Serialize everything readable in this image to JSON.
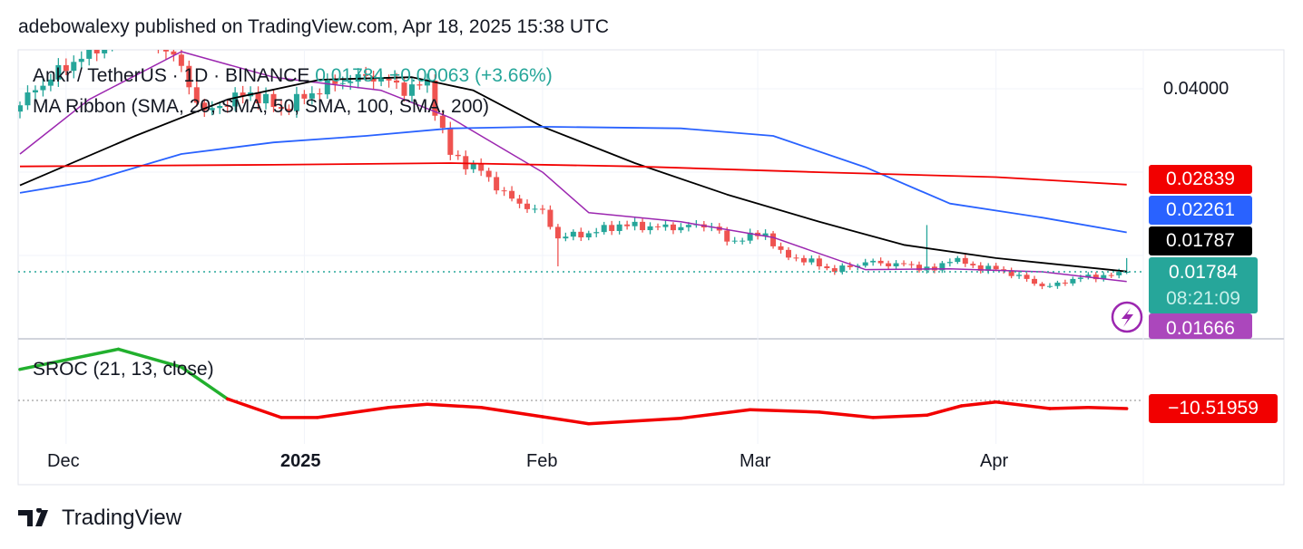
{
  "header": {
    "attribution": "adebowalexy published on TradingView.com, Apr 18, 2025 15:38 UTC"
  },
  "legend": {
    "symbol": "Ankr / TetherUS · 1D · BINANCE",
    "last": "0.01784",
    "change": "+0.00063 (+3.66%)",
    "indicator": "MA Ribbon (SMA, 20, SMA, 50, SMA, 100, SMA, 200)",
    "sroc": "SROC (21, 13, close)"
  },
  "price_scale": {
    "tick": "0.04000",
    "sma200": "0.02839",
    "sma100": "0.02261",
    "sma50": "0.01787",
    "last": "0.01784",
    "countdown": "08:21:09",
    "sma20": "0.01666",
    "sroc": "−10.51959"
  },
  "colors": {
    "up": "#26a69a",
    "down": "#ef5350",
    "sma20": "#9c27b0",
    "sma50": "#000000",
    "sma100": "#2962ff",
    "sma200": "#f20000",
    "sroc_pos": "#22b02e",
    "sroc_neg": "#f20000"
  },
  "time_axis": [
    "Dec",
    "2025",
    "Feb",
    "Mar",
    "Apr"
  ],
  "footer": {
    "brand": "TradingView"
  },
  "chart_data": {
    "type": "candlestick",
    "title": "Ankr / TetherUS · 1D · BINANCE",
    "start_date": "2024-11-25",
    "x_unit": "days since start",
    "close_keypoints": [
      [
        0,
        0.038
      ],
      [
        2,
        0.04
      ],
      [
        5,
        0.042
      ],
      [
        8,
        0.044
      ],
      [
        12,
        0.046
      ],
      [
        16,
        0.047
      ],
      [
        20,
        0.044
      ],
      [
        24,
        0.037
      ],
      [
        27,
        0.0385
      ],
      [
        30,
        0.0395
      ],
      [
        34,
        0.0375
      ],
      [
        38,
        0.0395
      ],
      [
        42,
        0.041
      ],
      [
        46,
        0.0415
      ],
      [
        50,
        0.04
      ],
      [
        53,
        0.0405
      ],
      [
        56,
        0.032
      ],
      [
        60,
        0.03
      ],
      [
        64,
        0.0265
      ],
      [
        68,
        0.025
      ],
      [
        70,
        0.022
      ],
      [
        74,
        0.0225
      ],
      [
        78,
        0.0235
      ],
      [
        84,
        0.0232
      ],
      [
        90,
        0.0235
      ],
      [
        92,
        0.0215
      ],
      [
        97,
        0.0225
      ],
      [
        99,
        0.02
      ],
      [
        103,
        0.019
      ],
      [
        106,
        0.018
      ],
      [
        110,
        0.019
      ],
      [
        116,
        0.0186
      ],
      [
        119,
        0.018
      ],
      [
        121,
        0.0195
      ],
      [
        124,
        0.0185
      ],
      [
        128,
        0.018
      ],
      [
        132,
        0.0165
      ],
      [
        134,
        0.016
      ],
      [
        137,
        0.017
      ],
      [
        140,
        0.0173
      ],
      [
        143,
        0.0175
      ],
      [
        144,
        0.01784
      ]
    ],
    "notable_wicks": [
      {
        "t": 70,
        "low": 0.0185
      },
      {
        "t": 118,
        "high": 0.0235
      },
      {
        "t": 144,
        "high": 0.0195
      }
    ],
    "series": [
      {
        "name": "SMA 20",
        "color": "#9c27b0",
        "points": [
          [
            0,
            0.0321
          ],
          [
            9,
            0.0387
          ],
          [
            21,
            0.0445
          ],
          [
            33,
            0.0414
          ],
          [
            47,
            0.0398
          ],
          [
            56,
            0.0365
          ],
          [
            68,
            0.0299
          ],
          [
            74,
            0.025
          ],
          [
            86,
            0.0239
          ],
          [
            98,
            0.022
          ],
          [
            110,
            0.0181
          ],
          [
            121,
            0.0182
          ],
          [
            133,
            0.01784
          ],
          [
            144,
            0.01666
          ]
        ]
      },
      {
        "name": "SMA 50",
        "color": "#000000",
        "points": [
          [
            0,
            0.0283
          ],
          [
            15,
            0.0343
          ],
          [
            27,
            0.0387
          ],
          [
            39,
            0.0411
          ],
          [
            51,
            0.0414
          ],
          [
            59,
            0.0398
          ],
          [
            68,
            0.0354
          ],
          [
            80,
            0.031
          ],
          [
            92,
            0.0272
          ],
          [
            104,
            0.0239
          ],
          [
            115,
            0.0211
          ],
          [
            127,
            0.0195
          ],
          [
            144,
            0.01787
          ]
        ]
      },
      {
        "name": "SMA 100",
        "color": "#2962ff",
        "points": [
          [
            0,
            0.0274
          ],
          [
            9,
            0.0288
          ],
          [
            21,
            0.0321
          ],
          [
            33,
            0.0335
          ],
          [
            45,
            0.0343
          ],
          [
            56,
            0.0352
          ],
          [
            68,
            0.0354
          ],
          [
            86,
            0.0352
          ],
          [
            98,
            0.0343
          ],
          [
            110,
            0.0305
          ],
          [
            121,
            0.0261
          ],
          [
            133,
            0.0244
          ],
          [
            144,
            0.02261
          ]
        ]
      },
      {
        "name": "SMA 200",
        "color": "#f20000",
        "points": [
          [
            0,
            0.0306
          ],
          [
            33,
            0.0308
          ],
          [
            56,
            0.031
          ],
          [
            80,
            0.0306
          ],
          [
            104,
            0.0299
          ],
          [
            127,
            0.0293
          ],
          [
            144,
            0.02839
          ]
        ]
      }
    ],
    "sroc": {
      "name": "SROC (21, 13, close)",
      "points": [
        [
          0,
          40
        ],
        [
          12.8,
          66
        ],
        [
          21,
          43
        ],
        [
          27,
          2
        ],
        [
          34,
          -22
        ],
        [
          38.7,
          -22
        ],
        [
          48,
          -9
        ],
        [
          53,
          -5
        ],
        [
          60,
          -9
        ],
        [
          68,
          -21
        ],
        [
          74,
          -30
        ],
        [
          86,
          -23
        ],
        [
          95,
          -12
        ],
        [
          104,
          -15
        ],
        [
          111,
          -22
        ],
        [
          118,
          -19
        ],
        [
          122.5,
          -7
        ],
        [
          127,
          -2
        ],
        [
          134,
          -10.5
        ],
        [
          139,
          -9
        ],
        [
          144,
          -10.52
        ]
      ]
    },
    "ylabel_ticks": [
      0.04
    ],
    "xticks": [
      {
        "label": "Dec",
        "t": 6
      },
      {
        "label": "2025",
        "t": 37
      },
      {
        "label": "Feb",
        "t": 68
      },
      {
        "label": "Mar",
        "t": 96
      },
      {
        "label": "Apr",
        "t": 127
      }
    ]
  }
}
